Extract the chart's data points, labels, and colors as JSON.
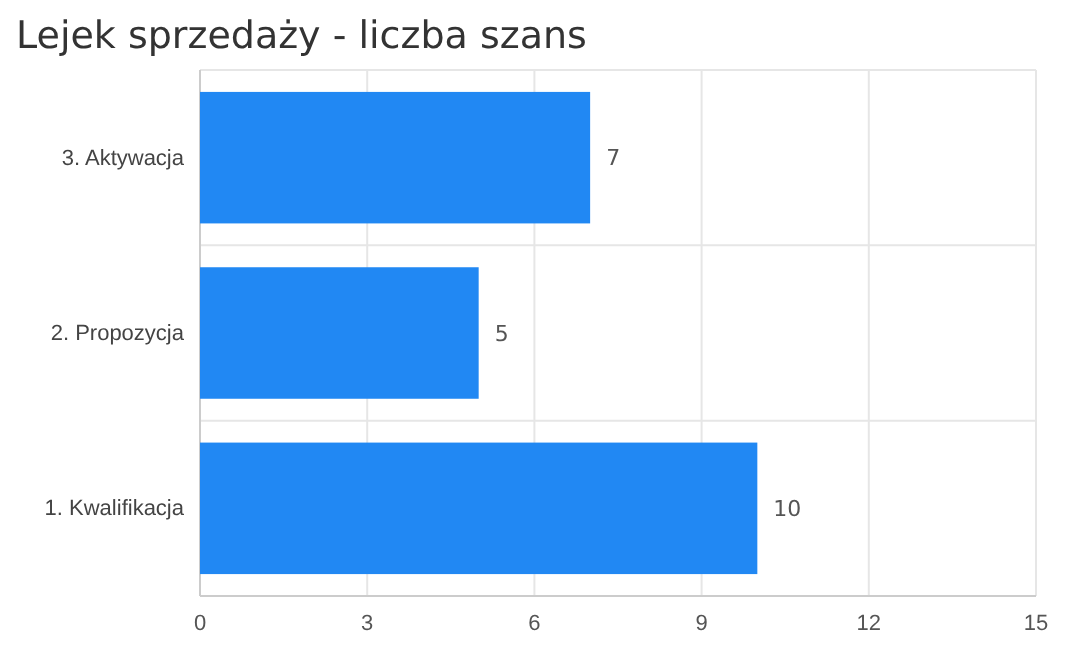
{
  "chart_data": {
    "type": "bar",
    "orientation": "horizontal",
    "title": "Lejek sprzedaży - liczba szans",
    "categories": [
      "3. Aktywacja",
      "2. Propozycja",
      "1. Kwalifikacja"
    ],
    "values": [
      7,
      5,
      10
    ],
    "color": "#2188f3",
    "xlim": [
      0,
      15
    ],
    "xticks": [
      0,
      3,
      6,
      9,
      12,
      15
    ],
    "grid": true,
    "data_labels": true
  }
}
